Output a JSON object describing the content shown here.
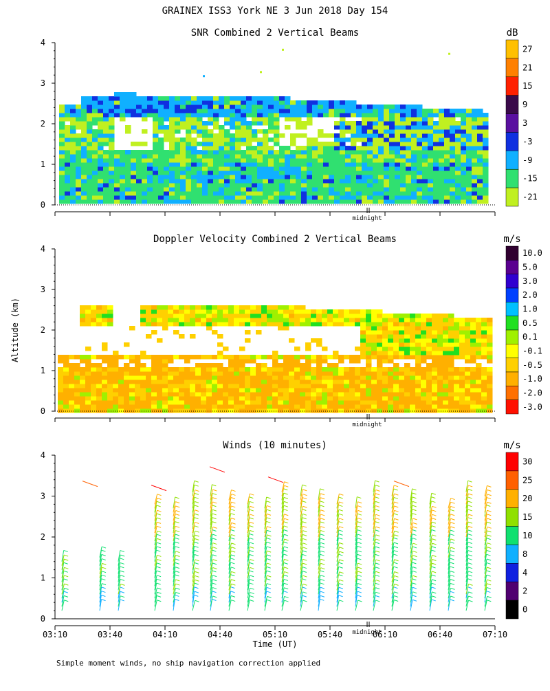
{
  "header": {
    "title": "GRAINEX ISS3 York NE   3 Jun 2018 Day 154"
  },
  "footer": {
    "note": "Simple moment winds, no ship navigation correction applied"
  },
  "chart_data": [
    {
      "type": "heatmap",
      "title": "SNR Combined 2 Vertical Beams",
      "ylabel": "",
      "ylim": [
        0,
        4
      ],
      "y_ticks": [
        "0",
        "1",
        "2",
        "3",
        "4"
      ],
      "x_marker": "midnight",
      "colorbar": {
        "unit": "dB",
        "labels": [
          "27",
          "21",
          "15",
          "9",
          "3",
          "-3",
          "-9",
          "-15",
          "-21"
        ],
        "colors": [
          "#ffc000",
          "#ff8000",
          "#ff2000",
          "#3a0a4a",
          "#5a10a0",
          "#1030e0",
          "#10b0ff",
          "#30e070",
          "#c0f020"
        ]
      },
      "layers": [
        {
          "name": "low-noise band",
          "alt": [
            0.15,
            1.4
          ],
          "color": "#30e070"
        },
        {
          "name": "mid band",
          "alt": [
            1.4,
            2.3
          ],
          "color": "#c0f020"
        },
        {
          "name": "upper layer",
          "alt": [
            2.3,
            2.7
          ],
          "color": "#10b0ff"
        },
        {
          "name": "strong echo",
          "alt": [
            1.2,
            2.2
          ],
          "color": "#1030e0"
        }
      ]
    },
    {
      "type": "heatmap",
      "title": "Doppler Velocity Combined 2 Vertical Beams",
      "ylabel": "Altitude (km)",
      "ylim": [
        0,
        4
      ],
      "y_ticks": [
        "0",
        "1",
        "2",
        "3",
        "4"
      ],
      "x_marker": "midnight",
      "colorbar": {
        "unit": "m/s",
        "labels": [
          "10.0",
          "5.0",
          "3.0",
          "2.0",
          "1.0",
          "0.5",
          "0.1",
          "-0.1",
          "-0.5",
          "-1.0",
          "-2.0",
          "-3.0"
        ],
        "colors": [
          "#300030",
          "#5a0090",
          "#3000d0",
          "#0040ff",
          "#00c0ff",
          "#20e020",
          "#a0f000",
          "#ffff00",
          "#ffd000",
          "#ffb000",
          "#ff7000",
          "#ff1000"
        ]
      }
    },
    {
      "type": "scatter",
      "title": "Winds (10 minutes)",
      "ylim": [
        0,
        4
      ],
      "y_ticks": [
        "0",
        "1",
        "2",
        "3",
        "4"
      ],
      "xlabel": "Time (UT)",
      "x_ticks": [
        "03:10",
        "03:40",
        "04:10",
        "04:40",
        "05:10",
        "05:40",
        "06:10",
        "06:40",
        "07:10"
      ],
      "x_marker": "midnight",
      "colorbar": {
        "unit": "m/s",
        "labels": [
          "30",
          "25",
          "20",
          "15",
          "10",
          "8",
          "4",
          "2",
          "0"
        ],
        "colors": [
          "#ff0000",
          "#ff6000",
          "#ffb000",
          "#90e000",
          "#10e070",
          "#10b0ff",
          "#1020e0",
          "#500070",
          "#000000"
        ]
      }
    }
  ]
}
